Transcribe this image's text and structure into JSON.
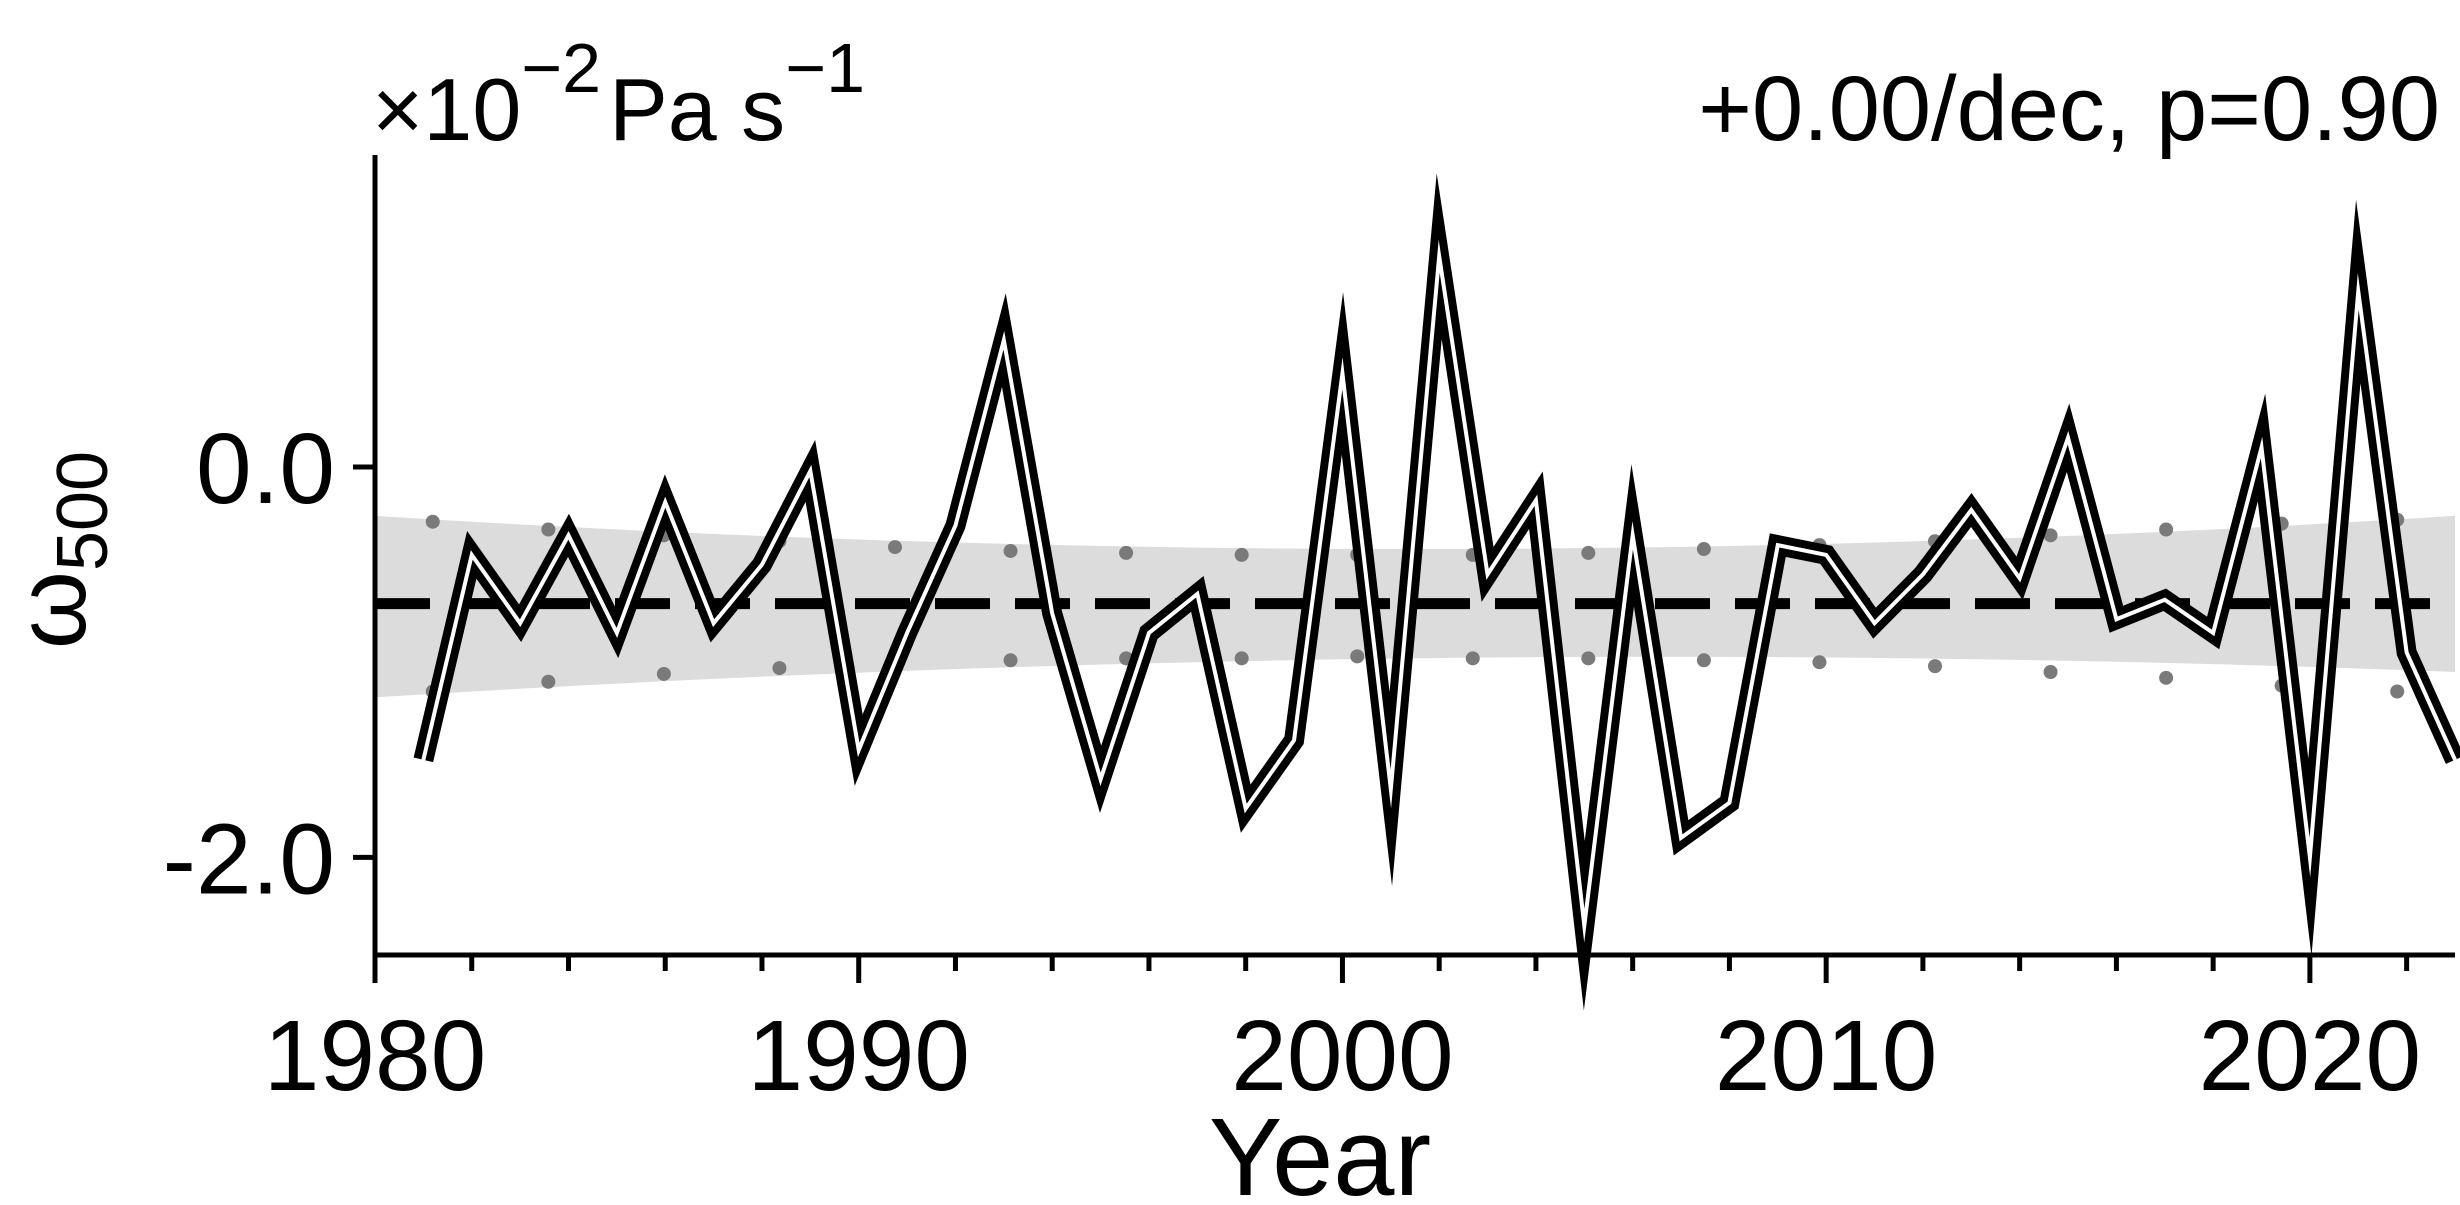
{
  "chart_data": {
    "type": "line",
    "units": {
      "prefix": "×10",
      "exp1": "−2",
      "mid": "Pa s",
      "exp2": "−1"
    },
    "trend_text": "+0.00/dec, p=0.90",
    "ylabel": {
      "main": "ω",
      "sub": "500"
    },
    "xlabel": "Year",
    "xlim": [
      1980,
      2023
    ],
    "ylim": [
      -2.5,
      1.65
    ],
    "x_ticks": [
      1980,
      1990,
      2000,
      2010,
      2020
    ],
    "y_ticks": [
      0.0,
      -2.0
    ],
    "y_tick_labels": [
      "0.0",
      "-2.0"
    ],
    "series": [
      {
        "x": [
          1981,
          1982,
          1983,
          1984,
          1985,
          1986,
          1987,
          1988,
          1989,
          1990,
          1991,
          1992,
          1993,
          1994,
          1995,
          1996,
          1997,
          1998,
          1999,
          2000,
          2001,
          2002,
          2003,
          2004,
          2005,
          2006,
          2007,
          2008,
          2009,
          2010,
          2011,
          2012,
          2013,
          2014,
          2015,
          2016,
          2017,
          2018,
          2019,
          2020,
          2021,
          2022,
          2023
        ],
        "values": [
          -1.5,
          -0.45,
          -0.8,
          -0.35,
          -0.85,
          -0.18,
          -0.8,
          -0.5,
          -0.02,
          -1.45,
          -0.85,
          -0.3,
          0.65,
          -0.75,
          -1.6,
          -0.85,
          -0.65,
          -1.75,
          -1.4,
          0.48,
          -1.65,
          1.08,
          -0.55,
          -0.17,
          -2.35,
          -0.35,
          -1.9,
          -1.72,
          -0.4,
          -0.45,
          -0.8,
          -0.55,
          -0.22,
          -0.57,
          0.15,
          -0.78,
          -0.68,
          -0.85,
          0.1,
          -2.0,
          0.9,
          -0.95,
          -1.5
        ]
      }
    ],
    "mean_value": -0.7,
    "band": {
      "lower": [
        -1.18,
        -0.98,
        -1.05
      ],
      "upper": [
        -0.25,
        -0.42,
        -0.25
      ]
    },
    "band_dots": {
      "lower": [
        -1.15,
        -1.1,
        -1.06,
        -1.03,
        -1.0,
        -0.99,
        -0.98,
        -0.98,
        -0.97,
        -0.98,
        -0.98,
        -0.99,
        -1.0,
        -1.02,
        -1.05,
        -1.08,
        -1.12,
        -1.15
      ],
      "upper": [
        -0.28,
        -0.32,
        -0.35,
        -0.38,
        -0.41,
        -0.43,
        -0.44,
        -0.45,
        -0.45,
        -0.45,
        -0.44,
        -0.42,
        -0.4,
        -0.38,
        -0.35,
        -0.32,
        -0.29,
        -0.27
      ]
    }
  }
}
